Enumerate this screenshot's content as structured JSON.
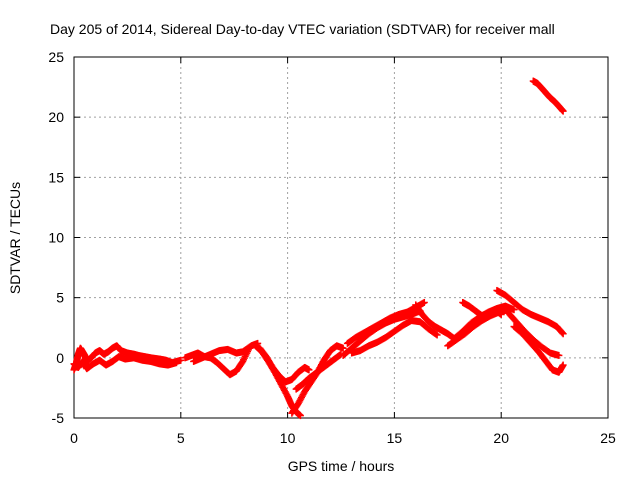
{
  "chart_data": {
    "type": "scatter",
    "title": "Day 205 of 2014, Sidereal Day-to-day VTEC variation (SDTVAR) for receiver mall",
    "xlabel": "GPS time / hours",
    "ylabel": "SDTVAR / TECUs",
    "xlim": [
      0,
      25
    ],
    "ylim": [
      -5,
      25
    ],
    "xticks": [
      0,
      5,
      10,
      15,
      20,
      25
    ],
    "yticks": [
      -5,
      0,
      5,
      10,
      15,
      20,
      25
    ],
    "grid": true,
    "marker": "plus",
    "series": [
      {
        "name": "SDTVAR",
        "color": "#ff0000",
        "segments": [
          {
            "x": [
              0.0,
              0.1,
              0.2,
              0.3,
              0.4,
              0.5,
              0.6,
              0.8,
              1.0,
              1.2,
              1.4,
              1.6,
              1.8,
              2.0,
              2.2,
              2.5,
              2.8,
              3.0,
              3.3,
              3.6,
              4.0,
              4.3,
              4.6,
              5.0
            ],
            "y": [
              -1.0,
              -0.5,
              0.3,
              0.8,
              0.5,
              0.2,
              -0.3,
              0.0,
              0.4,
              0.6,
              0.3,
              0.5,
              0.8,
              1.0,
              0.6,
              0.4,
              0.3,
              0.2,
              0.1,
              0.0,
              -0.1,
              -0.2,
              -0.4,
              -0.2
            ]
          },
          {
            "x": [
              0.0,
              0.2,
              0.4,
              0.6,
              0.9,
              1.2,
              1.5,
              1.8,
              2.1,
              2.4,
              2.8,
              3.2,
              3.6,
              4.0,
              4.4,
              4.8
            ],
            "y": [
              -0.5,
              -0.8,
              -0.3,
              -0.9,
              -0.5,
              -0.2,
              -0.6,
              -0.3,
              0.1,
              -0.1,
              0.0,
              -0.2,
              -0.3,
              -0.5,
              -0.6,
              -0.4
            ]
          },
          {
            "x": [
              5.2,
              5.5,
              5.8,
              6.1,
              6.4,
              6.7,
              7.0,
              7.3,
              7.6,
              7.9,
              8.2
            ],
            "y": [
              0.0,
              0.2,
              0.4,
              0.1,
              0.0,
              -0.4,
              -0.9,
              -1.4,
              -1.1,
              -0.3,
              0.8
            ]
          },
          {
            "x": [
              5.6,
              6.0,
              6.4,
              6.8,
              7.2,
              7.6,
              7.9,
              8.3,
              8.6
            ],
            "y": [
              -0.3,
              0.0,
              0.3,
              0.6,
              0.7,
              0.4,
              0.5,
              1.0,
              1.2
            ]
          },
          {
            "x": [
              8.5,
              8.8,
              9.1,
              9.4,
              9.7,
              10.0,
              10.2,
              10.4,
              10.6
            ],
            "y": [
              1.0,
              0.5,
              -0.3,
              -1.2,
              -2.2,
              -3.2,
              -4.0,
              -4.5,
              -4.8
            ]
          },
          {
            "x": [
              8.7,
              9.0,
              9.3,
              9.6,
              9.9,
              10.2,
              10.5,
              10.8,
              11.0
            ],
            "y": [
              0.8,
              0.1,
              -0.8,
              -1.5,
              -2.0,
              -1.8,
              -1.2,
              -0.8,
              -1.0
            ]
          },
          {
            "x": [
              10.2,
              10.5,
              10.8,
              11.1,
              11.4,
              11.7,
              12.0,
              12.3,
              12.6
            ],
            "y": [
              -4.6,
              -3.8,
              -2.8,
              -2.0,
              -1.2,
              -0.2,
              0.6,
              1.0,
              0.8
            ]
          },
          {
            "x": [
              10.4,
              10.7,
              11.0,
              11.3,
              11.6,
              11.9,
              12.2,
              12.5
            ],
            "y": [
              -2.6,
              -2.2,
              -1.7,
              -1.3,
              -0.9,
              -0.5,
              -0.1,
              0.3
            ]
          },
          {
            "x": [
              12.6,
              13.0,
              13.4,
              13.8,
              14.2,
              14.6,
              15.0,
              15.4,
              15.8,
              16.2
            ],
            "y": [
              0.2,
              0.8,
              1.4,
              2.0,
              2.5,
              2.9,
              3.2,
              3.4,
              3.6,
              3.9
            ]
          },
          {
            "x": [
              12.8,
              13.2,
              13.6,
              14.0,
              14.4,
              14.8,
              15.2,
              15.6,
              16.0,
              16.4
            ],
            "y": [
              1.2,
              1.7,
              2.1,
              2.5,
              2.9,
              3.3,
              3.6,
              3.8,
              4.2,
              4.6
            ]
          },
          {
            "x": [
              13.0,
              13.4,
              13.8,
              14.2,
              14.6,
              15.0,
              15.4,
              15.8,
              16.2,
              16.6,
              17.0
            ],
            "y": [
              0.4,
              0.6,
              1.0,
              1.3,
              1.7,
              2.2,
              2.7,
              3.1,
              3.0,
              2.4,
              1.9
            ]
          },
          {
            "x": [
              16.0,
              16.3,
              16.6,
              16.9,
              17.2,
              17.5,
              17.8
            ],
            "y": [
              4.4,
              3.6,
              3.0,
              2.6,
              2.3,
              2.0,
              1.6
            ]
          },
          {
            "x": [
              17.5,
              17.9,
              18.3,
              18.7,
              19.1,
              19.5,
              19.9,
              20.3
            ],
            "y": [
              1.0,
              1.5,
              2.0,
              2.6,
              3.1,
              3.5,
              3.8,
              4.0
            ]
          },
          {
            "x": [
              17.8,
              18.2,
              18.6,
              19.0,
              19.4,
              19.8,
              20.2,
              20.6
            ],
            "y": [
              1.6,
              2.2,
              2.9,
              3.4,
              3.8,
              4.1,
              4.3,
              4.0
            ]
          },
          {
            "x": [
              18.2,
              18.5,
              18.8,
              19.1,
              19.4,
              19.7,
              20.0
            ],
            "y": [
              4.6,
              4.3,
              3.9,
              3.5,
              3.7,
              4.0,
              3.6
            ]
          },
          {
            "x": [
              19.8,
              20.2,
              20.6,
              21.0,
              21.4,
              21.8,
              22.2,
              22.6,
              22.9
            ],
            "y": [
              5.6,
              5.2,
              4.6,
              4.0,
              3.6,
              3.3,
              3.0,
              2.6,
              2.0
            ]
          },
          {
            "x": [
              20.3,
              20.7,
              21.1,
              21.5,
              21.9,
              22.3,
              22.7
            ],
            "y": [
              3.8,
              3.0,
              2.2,
              1.5,
              0.9,
              0.4,
              0.2
            ]
          },
          {
            "x": [
              20.6,
              21.0,
              21.4,
              21.8,
              22.1,
              22.4,
              22.7,
              22.9
            ],
            "y": [
              2.6,
              2.0,
              1.2,
              0.4,
              -0.3,
              -1.0,
              -1.2,
              -0.6
            ]
          },
          {
            "x": [
              21.5,
              21.7,
              21.9,
              22.1,
              22.3,
              22.5,
              22.7,
              22.9
            ],
            "y": [
              23.0,
              22.8,
              22.4,
              22.0,
              21.6,
              21.3,
              20.9,
              20.5
            ]
          }
        ]
      }
    ]
  }
}
